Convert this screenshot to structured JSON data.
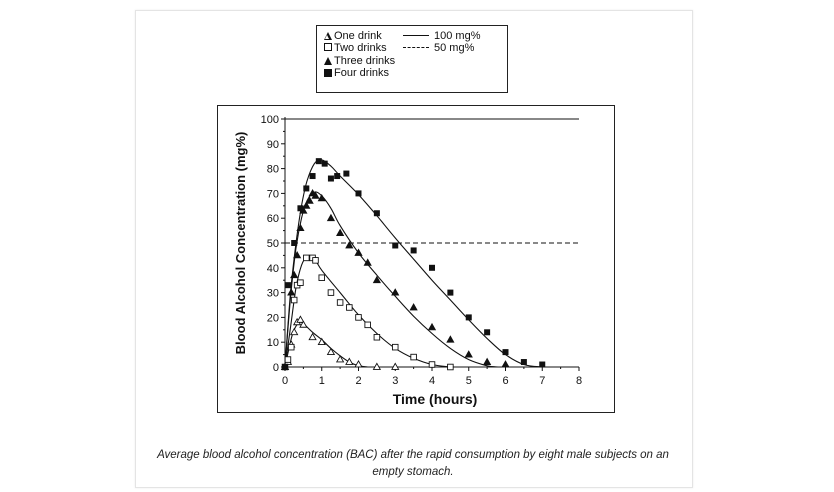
{
  "chart_data": {
    "type": "scatter",
    "xlabel": "Time (hours)",
    "ylabel": "Blood Alcohol Concentration (mg%)",
    "xlim": [
      0,
      8
    ],
    "ylim": [
      0,
      100
    ],
    "x_ticks": [
      "0",
      "1",
      "2",
      "3",
      "4",
      "5",
      "6",
      "7",
      "8"
    ],
    "y_ticks": [
      "0",
      "10",
      "20",
      "30",
      "40",
      "50",
      "60",
      "70",
      "80",
      "90",
      "100"
    ],
    "reference_lines": [
      {
        "label": "100 mg%",
        "y": 100,
        "style": "solid"
      },
      {
        "label": "50 mg%",
        "y": 50,
        "style": "dashed"
      }
    ],
    "legend": {
      "position": "top",
      "entries": [
        {
          "label": "One drink",
          "marker": "triangle-open"
        },
        {
          "label": "Two drinks",
          "marker": "square-open"
        },
        {
          "label": "Three drinks",
          "marker": "triangle-filled"
        },
        {
          "label": "Four drinks",
          "marker": "square-filled"
        }
      ]
    },
    "series": [
      {
        "name": "One drink",
        "marker": "triangle-open",
        "points": [
          [
            0,
            0
          ],
          [
            0.08,
            2
          ],
          [
            0.17,
            9
          ],
          [
            0.25,
            14
          ],
          [
            0.33,
            18
          ],
          [
            0.42,
            19
          ],
          [
            0.5,
            17
          ],
          [
            0.75,
            12
          ],
          [
            1,
            10
          ],
          [
            1.25,
            6
          ],
          [
            1.5,
            3
          ],
          [
            1.75,
            2
          ],
          [
            2,
            1
          ],
          [
            2.5,
            0
          ],
          [
            3,
            0
          ]
        ],
        "curve": [
          [
            0,
            0
          ],
          [
            0.1,
            7
          ],
          [
            0.2,
            13
          ],
          [
            0.3,
            16.5
          ],
          [
            0.4,
            18
          ],
          [
            0.5,
            17.5
          ],
          [
            0.75,
            14
          ],
          [
            1,
            11
          ],
          [
            1.25,
            7.5
          ],
          [
            1.5,
            4.5
          ],
          [
            1.75,
            2
          ],
          [
            2,
            0.5
          ],
          [
            2.25,
            0
          ]
        ]
      },
      {
        "name": "Two drinks",
        "marker": "square-open",
        "points": [
          [
            0,
            0
          ],
          [
            0.08,
            3
          ],
          [
            0.17,
            8
          ],
          [
            0.25,
            27
          ],
          [
            0.33,
            33
          ],
          [
            0.42,
            34
          ],
          [
            0.58,
            44
          ],
          [
            0.75,
            44
          ],
          [
            0.83,
            43
          ],
          [
            1,
            36
          ],
          [
            1.25,
            30
          ],
          [
            1.5,
            26
          ],
          [
            1.75,
            24
          ],
          [
            2,
            20
          ],
          [
            2.25,
            17
          ],
          [
            2.5,
            12
          ],
          [
            3,
            8
          ],
          [
            3.5,
            4
          ],
          [
            4,
            1
          ],
          [
            4.5,
            0
          ]
        ],
        "curve": [
          [
            0,
            0
          ],
          [
            0.15,
            16
          ],
          [
            0.3,
            32
          ],
          [
            0.45,
            41
          ],
          [
            0.6,
            44.5
          ],
          [
            0.8,
            43.5
          ],
          [
            1,
            39
          ],
          [
            1.5,
            30
          ],
          [
            2,
            21
          ],
          [
            2.5,
            13.5
          ],
          [
            3,
            7.5
          ],
          [
            3.5,
            3.5
          ],
          [
            4,
            1
          ],
          [
            4.5,
            0
          ]
        ]
      },
      {
        "name": "Three drinks",
        "marker": "triangle-filled",
        "points": [
          [
            0,
            0
          ],
          [
            0.17,
            30
          ],
          [
            0.25,
            37
          ],
          [
            0.33,
            45
          ],
          [
            0.42,
            56
          ],
          [
            0.5,
            63
          ],
          [
            0.58,
            65
          ],
          [
            0.67,
            67
          ],
          [
            0.75,
            70
          ],
          [
            0.83,
            69
          ],
          [
            1,
            68
          ],
          [
            1.25,
            60
          ],
          [
            1.5,
            54
          ],
          [
            1.75,
            49
          ],
          [
            2,
            46
          ],
          [
            2.25,
            42
          ],
          [
            2.5,
            35
          ],
          [
            3,
            30
          ],
          [
            3.5,
            24
          ],
          [
            4,
            16
          ],
          [
            4.5,
            11
          ],
          [
            5,
            5
          ],
          [
            5.5,
            2
          ],
          [
            6,
            1
          ]
        ],
        "curve": [
          [
            0,
            0
          ],
          [
            0.15,
            28
          ],
          [
            0.3,
            48
          ],
          [
            0.45,
            60
          ],
          [
            0.6,
            67
          ],
          [
            0.8,
            70.5
          ],
          [
            1,
            69
          ],
          [
            1.25,
            64
          ],
          [
            1.5,
            57
          ],
          [
            2,
            46
          ],
          [
            2.5,
            37
          ],
          [
            3,
            28.5
          ],
          [
            3.5,
            20.5
          ],
          [
            4,
            13.5
          ],
          [
            4.5,
            7.5
          ],
          [
            5,
            3
          ],
          [
            5.5,
            0.5
          ],
          [
            5.8,
            0
          ]
        ]
      },
      {
        "name": "Four drinks",
        "marker": "square-filled",
        "points": [
          [
            0,
            0
          ],
          [
            0.08,
            33
          ],
          [
            0.25,
            50
          ],
          [
            0.42,
            64
          ],
          [
            0.58,
            72
          ],
          [
            0.75,
            77
          ],
          [
            0.92,
            83
          ],
          [
            1.08,
            82
          ],
          [
            1.25,
            76
          ],
          [
            1.42,
            77
          ],
          [
            1.67,
            78
          ],
          [
            2,
            70
          ],
          [
            2.5,
            62
          ],
          [
            3,
            49
          ],
          [
            3.5,
            47
          ],
          [
            4,
            40
          ],
          [
            4.5,
            30
          ],
          [
            5,
            20
          ],
          [
            5.5,
            14
          ],
          [
            6,
            6
          ],
          [
            6.5,
            2
          ],
          [
            7,
            1
          ]
        ],
        "curve": [
          [
            0,
            0
          ],
          [
            0.15,
            30
          ],
          [
            0.3,
            50
          ],
          [
            0.45,
            65
          ],
          [
            0.6,
            75
          ],
          [
            0.8,
            82
          ],
          [
            1,
            83.5
          ],
          [
            1.25,
            81
          ],
          [
            1.5,
            77
          ],
          [
            2,
            69.5
          ],
          [
            2.5,
            61
          ],
          [
            3,
            52
          ],
          [
            3.5,
            43.5
          ],
          [
            4,
            35
          ],
          [
            4.5,
            27
          ],
          [
            5,
            19
          ],
          [
            5.5,
            11.5
          ],
          [
            6,
            5
          ],
          [
            6.5,
            1
          ],
          [
            7,
            0
          ]
        ]
      }
    ]
  },
  "legend_labels": {
    "one": "One drink",
    "two": "Two drinks",
    "three": "Three drinks",
    "four": "Four drinks",
    "ref100": "100 mg%",
    "ref50": "50 mg%"
  },
  "caption": "Average blood alcohol concentration (BAC) after the rapid consumption by eight male subjects on an empty stomach."
}
